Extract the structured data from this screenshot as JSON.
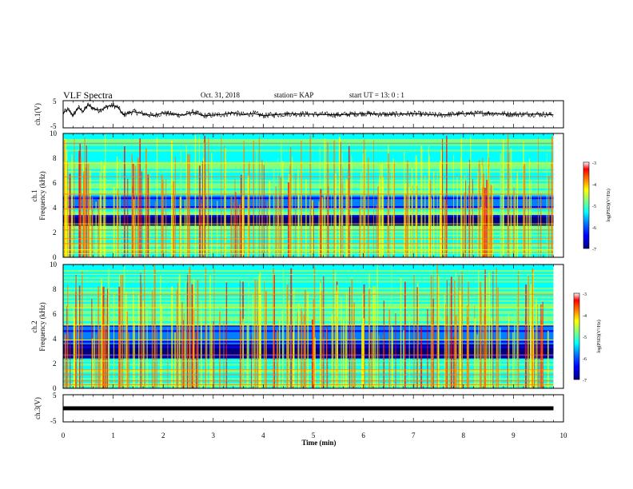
{
  "header": {
    "title": "VLF Spectra",
    "date": "Oct. 31, 2018",
    "station": "station= KAP",
    "start_ut": "start UT =  13: 0  : 1"
  },
  "colors": {
    "colormap": [
      "#00007f",
      "#0000ff",
      "#0080ff",
      "#00ffff",
      "#80ff80",
      "#ffff00",
      "#ff8000",
      "#ff0000",
      "#ffffff"
    ],
    "trace": "#000000",
    "axes": "#000000"
  },
  "chart_data": [
    {
      "type": "line",
      "ylabel": "ch.1(V)",
      "ylim": [
        -5,
        5
      ],
      "yticks": [
        "5",
        "-5"
      ],
      "x": [
        0,
        0.1,
        0.2,
        0.3,
        0.4,
        0.5,
        0.6,
        0.7,
        0.8,
        0.9,
        1.0,
        1.1,
        1.2,
        1.4,
        1.6,
        1.8,
        2.0,
        2.2,
        2.4,
        2.6,
        2.8,
        3.0,
        3.2,
        3.4,
        3.6,
        3.8,
        4.0,
        4.5,
        5.0,
        5.5,
        6.0,
        6.5,
        7.0,
        7.5,
        8.0,
        8.5,
        9.0,
        9.5,
        9.8
      ],
      "values": [
        0.5,
        1.8,
        -0.5,
        2.5,
        1.0,
        3.5,
        2.2,
        1.5,
        2.0,
        3.0,
        3.2,
        2.5,
        -0.2,
        1.0,
        0.2,
        -0.5,
        0.5,
        0.0,
        -0.3,
        0.8,
        -0.6,
        -0.3,
        0.0,
        0.5,
        -0.2,
        0.3,
        -0.5,
        0.2,
        0.0,
        -0.2,
        0.3,
        -0.1,
        0.2,
        -0.3,
        0.2,
        0.4,
        0.0,
        0.1,
        -0.2
      ]
    },
    {
      "type": "heatmap",
      "ylabel": "ch.1\nFrequency (kHz)",
      "ylim": [
        0,
        10
      ],
      "yticks": [
        "0",
        "2",
        "4",
        "6",
        "8",
        "10"
      ],
      "x_range_min": [
        0,
        9.8
      ],
      "colorbar": {
        "label": "log(PSD)(V²/Hz)",
        "range": [
          -7,
          -3
        ],
        "ticks": [
          "-3",
          "-4",
          "-5",
          "-6",
          "-7"
        ]
      },
      "features": [
        {
          "band_khz": [
            2.5,
            3.5
          ],
          "level": -6.8
        },
        {
          "band_khz": [
            4.0,
            5.0
          ],
          "level": -6.0
        },
        {
          "band_khz": [
            0.0,
            2.5
          ],
          "level": -5.0
        },
        {
          "band_khz": [
            5.0,
            10.0
          ],
          "level": -5.0
        }
      ]
    },
    {
      "type": "heatmap",
      "ylabel": "ch.2\nFrequency (kHz)",
      "ylim": [
        0,
        10
      ],
      "yticks": [
        "0",
        "2",
        "4",
        "6",
        "8",
        "10"
      ],
      "x_range_min": [
        0,
        9.8
      ],
      "colorbar": {
        "label": "log(PSD)(V²/Hz)",
        "range": [
          -7,
          -3
        ],
        "ticks": [
          "-3",
          "-4",
          "-5",
          "-6",
          "-7"
        ]
      },
      "features": [
        {
          "band_khz": [
            2.4,
            3.6
          ],
          "level": -6.8
        },
        {
          "band_khz": [
            3.7,
            5.2
          ],
          "level": -6.0
        },
        {
          "band_khz": [
            0.0,
            2.4
          ],
          "level": -5.0
        },
        {
          "band_khz": [
            5.2,
            10.0
          ],
          "level": -5.0
        }
      ]
    },
    {
      "type": "line",
      "ylabel": "ch.3(V)",
      "ylim": [
        -5,
        5
      ],
      "yticks": [
        "5",
        "-5"
      ],
      "x": [
        0,
        9.8
      ],
      "values": [
        0,
        0
      ]
    }
  ],
  "xaxis": {
    "label": "Time (min)",
    "ticks": [
      "0",
      "1",
      "2",
      "3",
      "4",
      "5",
      "6",
      "7",
      "8",
      "9",
      "10"
    ],
    "range": [
      0,
      10
    ]
  }
}
